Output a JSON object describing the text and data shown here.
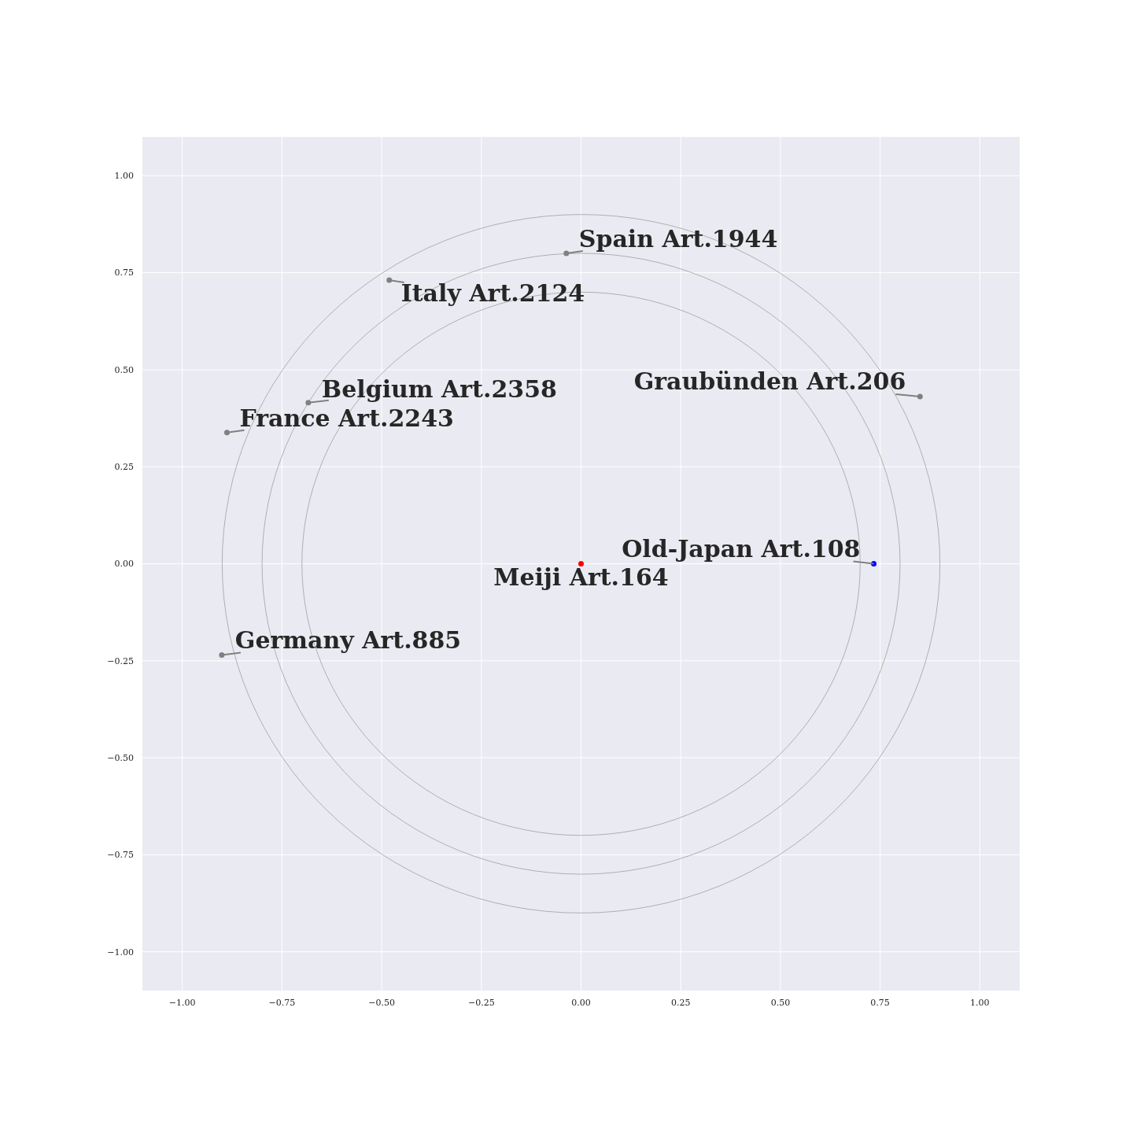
{
  "chart_data": {
    "type": "scatter",
    "xlim": [
      -1.1,
      1.1
    ],
    "ylim": [
      -1.1,
      1.1
    ],
    "xticks": [
      {
        "value": -1,
        "label": "−1.00"
      },
      {
        "value": -0.75,
        "label": "−0.75"
      },
      {
        "value": -0.5,
        "label": "−0.50"
      },
      {
        "value": -0.25,
        "label": "−0.25"
      },
      {
        "value": 0,
        "label": "0.00"
      },
      {
        "value": 0.25,
        "label": "0.25"
      },
      {
        "value": 0.5,
        "label": "0.50"
      },
      {
        "value": 0.75,
        "label": "0.75"
      },
      {
        "value": 1,
        "label": "1.00"
      }
    ],
    "yticks": [
      {
        "value": -1,
        "label": "−1.00"
      },
      {
        "value": -0.75,
        "label": "−0.75"
      },
      {
        "value": -0.5,
        "label": "−0.50"
      },
      {
        "value": -0.25,
        "label": "−0.25"
      },
      {
        "value": 0,
        "label": "0.00"
      },
      {
        "value": 0.25,
        "label": "0.25"
      },
      {
        "value": 0.5,
        "label": "0.50"
      },
      {
        "value": 0.75,
        "label": "0.75"
      },
      {
        "value": 1,
        "label": "1.00"
      }
    ],
    "grid": true,
    "series": [
      {
        "marker": "circle",
        "x": [
          -0.037,
          -0.481,
          -0.684,
          -0.888,
          -0.901,
          0.85,
          0.734,
          0
        ],
        "values": [
          0.8,
          0.731,
          0.415,
          0.338,
          -0.235,
          0.431,
          0,
          0
        ],
        "colors": [
          "#808080",
          "#808080",
          "#808080",
          "#808080",
          "#808080",
          "#808080",
          "#0000ff",
          "#ff0000"
        ]
      }
    ],
    "annotations": [
      {
        "text": "Spain Art.1944",
        "x": -0.037,
        "y": 0.8
      },
      {
        "text": "Italy Art.2124",
        "x": -0.481,
        "y": 0.731
      },
      {
        "text": "Belgium Art.2358",
        "x": -0.684,
        "y": 0.415
      },
      {
        "text": "France Art.2243",
        "x": -0.888,
        "y": 0.338
      },
      {
        "text": "Germany Art.885",
        "x": -0.901,
        "y": -0.235
      },
      {
        "text": "Graubünden Art.206",
        "x": 0.85,
        "y": 0.431
      },
      {
        "text": "Old-Japan Art.108",
        "x": 0.734,
        "y": 0
      },
      {
        "text": "Meiji Art.164",
        "x": 0,
        "y": 0
      }
    ]
  }
}
